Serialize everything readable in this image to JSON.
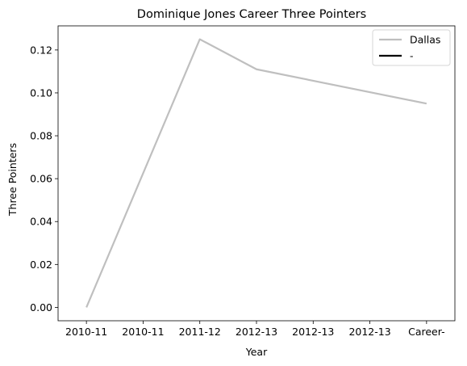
{
  "chart_data": {
    "type": "line",
    "title": "Dominique Jones Career Three Pointers",
    "xlabel": "Year",
    "ylabel": "Three Pointers",
    "categories": [
      "2010-11",
      "2010-11",
      "2011-12",
      "2012-13",
      "2012-13",
      "2012-13",
      "Career-"
    ],
    "series": [
      {
        "name": "Dallas",
        "color": "#bfbfbf",
        "points": [
          {
            "x": "2010-11",
            "y": 0.0
          },
          {
            "x": "2011-12",
            "y": 0.125
          },
          {
            "x": "2012-13",
            "y": 0.111
          },
          {
            "x": "Career-",
            "y": 0.095
          }
        ]
      },
      {
        "name": "-",
        "color": "#000000",
        "points": []
      }
    ],
    "ylim": [
      -0.00625,
      0.13125
    ],
    "yticks": [
      "0.00",
      "0.02",
      "0.04",
      "0.06",
      "0.08",
      "0.10",
      "0.12"
    ],
    "grid": false,
    "legend_position": "top-right"
  }
}
